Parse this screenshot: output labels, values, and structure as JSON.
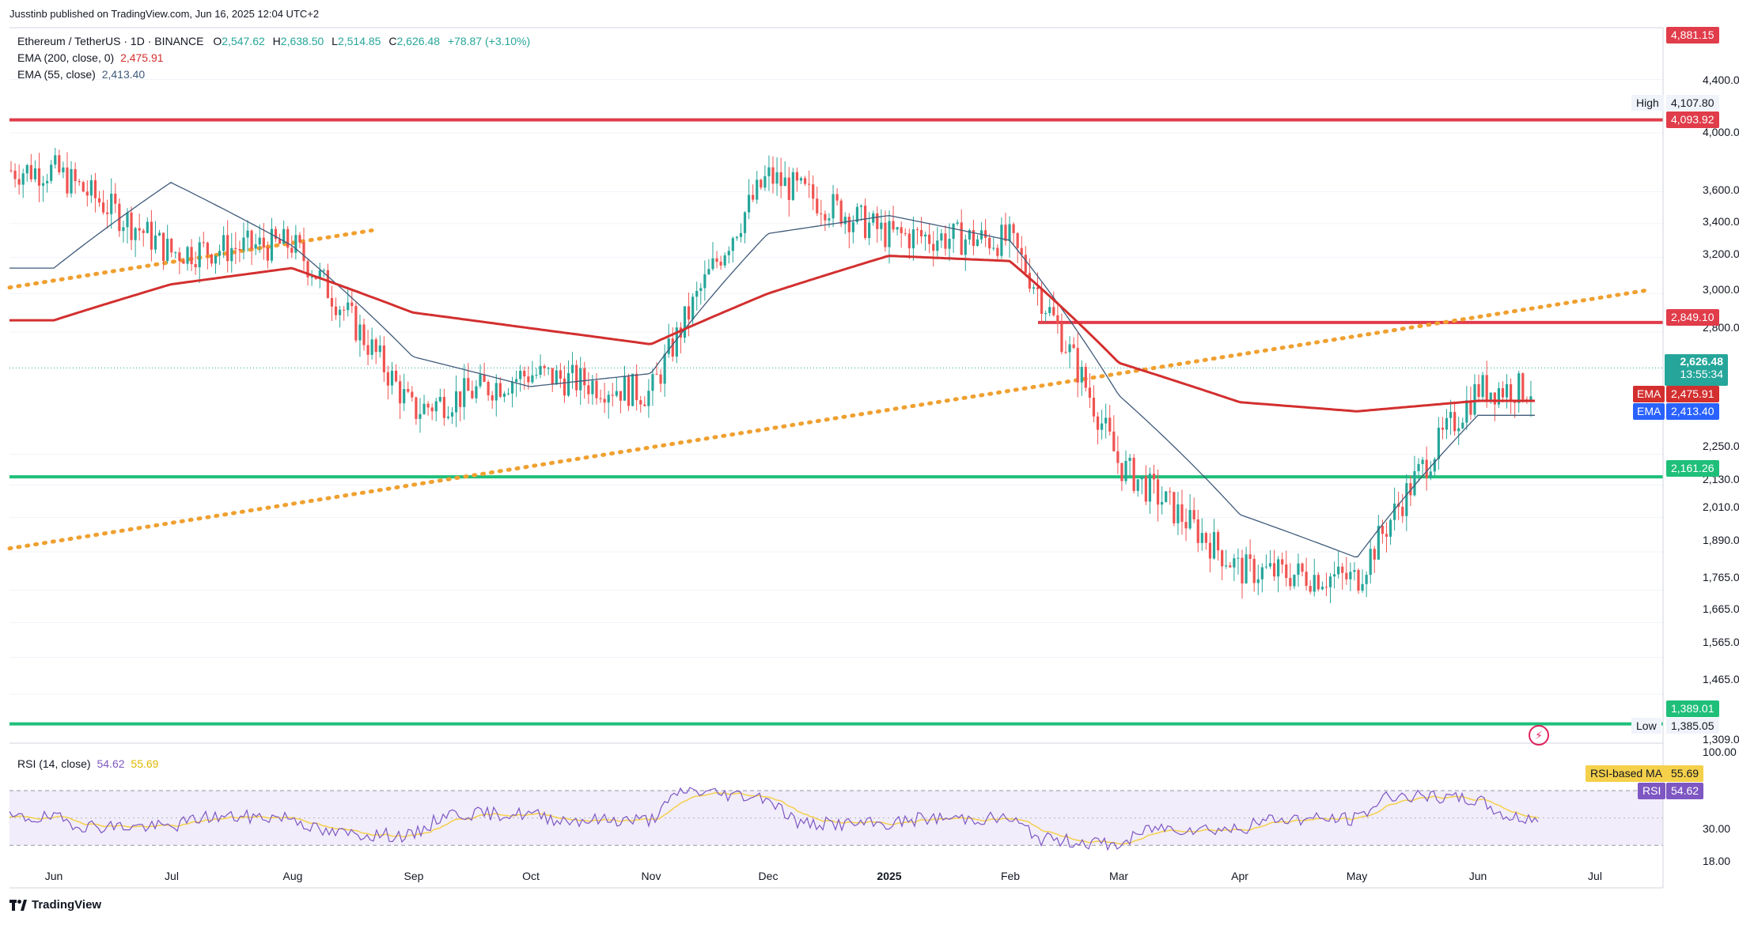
{
  "header": {
    "publisher": "Jusstinb published on TradingView.com, Jun 16, 2025 12:04 UTC+2"
  },
  "legend": {
    "symbol": "Ethereum / TetherUS · 1D · BINANCE",
    "ohlc": {
      "o_label": "O",
      "o": "2,547.62",
      "h_label": "H",
      "h": "2,638.50",
      "l_label": "L",
      "l": "2,514.85",
      "c_label": "C",
      "c": "2,626.48",
      "change": "+78.87 (+3.10%)"
    },
    "ema200": {
      "label": "EMA (200, close, 0)",
      "value": "2,475.91"
    },
    "ema55": {
      "label": "EMA (55, close)",
      "value": "2,413.40"
    },
    "rsi": {
      "label": "RSI (14, close)",
      "value": "54.62",
      "ma_value": "55.69"
    }
  },
  "price_axis": {
    "ticks": [
      "4,400.00",
      "4,000.00",
      "3,600.00",
      "3,400.00",
      "3,200.00",
      "3,000.00",
      "2,800.00",
      "2,250.00",
      "2,130.00",
      "2,010.00",
      "1,890.00",
      "1,765.00",
      "1,665.00",
      "1,565.00",
      "1,465.00",
      "1,309.00"
    ],
    "badges": {
      "top": "4,881.15",
      "high_label": "High",
      "high": "4,107.80",
      "resistance_top": "4,093.92",
      "resistance_mid": "2,849.10",
      "last_price": "2,626.48",
      "countdown": "13:55:34",
      "ema_label": "EMA",
      "ema200": "2,475.91",
      "ema55": "2,413.40",
      "support_mid": "2,161.26",
      "support_low": "1,389.01",
      "low_label": "Low",
      "low": "1,385.05"
    }
  },
  "rsi_axis": {
    "ticks": [
      "100.00",
      "30.00",
      "18.00"
    ],
    "ma_label": "RSI-based MA",
    "ma_value": "55.69",
    "rsi_label": "RSI",
    "rsi_value": "54.62"
  },
  "time_axis": [
    "Jun",
    "Jul",
    "Aug",
    "Sep",
    "Oct",
    "Nov",
    "Dec",
    "2025",
    "Feb",
    "Mar",
    "Apr",
    "May",
    "Jun",
    "Jul"
  ],
  "footer": {
    "brand": "TradingView"
  },
  "colors": {
    "up": "#26a69a",
    "down": "#ef5350",
    "ema200": "#d32f2f",
    "ema55": "#3f5a7a",
    "resistance": "#e03c4a",
    "support": "#1fbf7a",
    "trendline": "#f0a030",
    "rsi_line": "#7e57c2",
    "rsi_ma": "#f5d04a",
    "rsi_band": "#f1edfb"
  },
  "chart_data": {
    "type": "candlestick",
    "title": "Ethereum / TetherUS · 1D · BINANCE",
    "y_scale": "log",
    "ylim": [
      1280,
      4900
    ],
    "x": [
      "2024-06",
      "2024-07",
      "2024-08",
      "2024-09",
      "2024-10",
      "2024-11",
      "2024-12",
      "2025-01",
      "2025-02",
      "2025-03",
      "2025-04",
      "2025-05",
      "2025-06"
    ],
    "series": [
      {
        "name": "ETHUSDT close (approx., monthly path)",
        "values": [
          3740,
          3230,
          3280,
          2430,
          2600,
          2510,
          3700,
          3330,
          3300,
          2210,
          1830,
          1800,
          2530
        ]
      },
      {
        "name": "EMA (200, close, 0)",
        "values": [
          2860,
          3050,
          3140,
          2900,
          2820,
          2740,
          3000,
          3210,
          3180,
          2650,
          2470,
          2430,
          2476
        ]
      },
      {
        "name": "EMA (55, close)",
        "values": [
          3140,
          3660,
          3270,
          2680,
          2540,
          2600,
          3340,
          3450,
          3300,
          2500,
          2020,
          1870,
          2413
        ]
      }
    ],
    "levels": [
      {
        "name": "resistance",
        "value": 4093.92
      },
      {
        "name": "resistance",
        "value": 2849.1
      },
      {
        "name": "support",
        "value": 2161.26
      },
      {
        "name": "support",
        "value": 1389.01
      }
    ],
    "trendline": {
      "from": [
        "2024-05-20",
        1900
      ],
      "to": [
        "2025-07-15",
        3020
      ]
    },
    "rsi": {
      "ylim": [
        18,
        100
      ],
      "bands": [
        30,
        70
      ],
      "last": 54.62,
      "ma_last": 55.69
    }
  }
}
